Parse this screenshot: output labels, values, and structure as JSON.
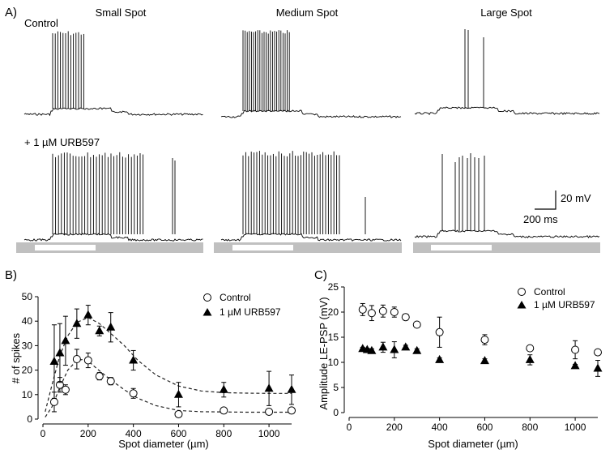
{
  "panel_a": {
    "label": "A)",
    "columns": [
      "Small Spot",
      "Medium Spot",
      "Large Spot"
    ],
    "row_labels": [
      "Control",
      "+ 1 µM URB597"
    ],
    "scalebar": {
      "voltage": "20 mV",
      "time": "200 ms"
    }
  },
  "colors": {
    "control": "#ffffff",
    "urb": "#000000",
    "stimulus_bar": "#c0c0c0",
    "fit": "#222222"
  },
  "chart_data": [
    {
      "panel": "B)",
      "type": "scatter",
      "xlabel": "Spot diameter (µm)",
      "ylabel": "# of spikes",
      "xlim": [
        0,
        1100
      ],
      "ylim": [
        0,
        50
      ],
      "xticks": [
        0,
        200,
        400,
        600,
        800,
        1000
      ],
      "yticks": [
        0,
        10,
        20,
        30,
        40,
        50
      ],
      "legend": "top-right",
      "fit_lines": "dashed",
      "series": [
        {
          "name": "Control",
          "marker": "open-circle",
          "x": [
            50,
            75,
            100,
            150,
            200,
            250,
            300,
            400,
            600,
            800,
            1000,
            1100
          ],
          "y": [
            7,
            14,
            12,
            24.5,
            24,
            17.5,
            15.5,
            10.5,
            2,
            3.5,
            3,
            3.5
          ],
          "err": [
            4,
            3,
            2,
            4,
            3,
            1.5,
            1.5,
            2,
            1,
            1,
            1,
            1
          ],
          "fit": [
            [
              10,
              0.8
            ],
            [
              40,
              5
            ],
            [
              75,
              13
            ],
            [
              110,
              20
            ],
            [
              150,
              24
            ],
            [
              190,
              24.5
            ],
            [
              240,
              20.5
            ],
            [
              300,
              16
            ],
            [
              360,
              12
            ],
            [
              420,
              8.5
            ],
            [
              500,
              5.5
            ],
            [
              600,
              3.5
            ],
            [
              700,
              3
            ],
            [
              800,
              2.9
            ],
            [
              900,
              2.8
            ],
            [
              1000,
              2.8
            ],
            [
              1100,
              2.8
            ]
          ]
        },
        {
          "name": "1 µM URB597",
          "marker": "filled-triangle",
          "x": [
            50,
            75,
            100,
            150,
            200,
            250,
            300,
            400,
            600,
            800,
            1000,
            1100
          ],
          "y": [
            23.5,
            27,
            32,
            39,
            42.5,
            36,
            37.5,
            24,
            10,
            12,
            12.5,
            12
          ],
          "err": [
            15,
            12,
            10,
            6,
            4,
            2,
            6,
            4,
            5,
            3,
            7,
            6
          ],
          "fit": [
            [
              10,
              3
            ],
            [
              40,
              14
            ],
            [
              75,
              26
            ],
            [
              110,
              34
            ],
            [
              150,
              39.5
            ],
            [
              200,
              41.5
            ],
            [
              250,
              39
            ],
            [
              300,
              35
            ],
            [
              360,
              30
            ],
            [
              420,
              24
            ],
            [
              500,
              18
            ],
            [
              600,
              13.5
            ],
            [
              700,
              11.5
            ],
            [
              800,
              10.8
            ],
            [
              900,
              10.6
            ],
            [
              1000,
              10.5
            ],
            [
              1100,
              10.5
            ]
          ]
        }
      ]
    },
    {
      "panel": "C)",
      "type": "scatter",
      "xlabel": "Spot diameter (µm)",
      "ylabel": "Amplitude LE-PSP (mV)",
      "xlim": [
        0,
        1100
      ],
      "ylim": [
        0,
        25
      ],
      "xticks": [
        0,
        200,
        400,
        600,
        800,
        1000
      ],
      "yticks": [
        0,
        5,
        10,
        15,
        20,
        25
      ],
      "legend": "top-right",
      "series": [
        {
          "name": "Control",
          "marker": "open-circle",
          "x": [
            60,
            100,
            150,
            200,
            250,
            300,
            400,
            600,
            800,
            1000,
            1100
          ],
          "y": [
            20.5,
            19.8,
            20.2,
            20,
            19,
            17.5,
            16,
            14.5,
            12.8,
            12.5,
            12
          ],
          "err": [
            1.2,
            1.5,
            1.2,
            1,
            0.6,
            0.4,
            3,
            1,
            0.5,
            1.8,
            0.4
          ]
        },
        {
          "name": "1 µM URB597",
          "marker": "filled-triangle",
          "x": [
            60,
            80,
            100,
            150,
            200,
            250,
            300,
            400,
            600,
            800,
            1000,
            1100
          ],
          "y": [
            12.7,
            12.5,
            12.3,
            13,
            12.5,
            13,
            12.3,
            10.5,
            10.3,
            10.5,
            9.3,
            8.8
          ],
          "err": [
            0.3,
            0.3,
            0.4,
            1,
            1.6,
            0.4,
            0.4,
            0.4,
            0.4,
            1,
            0.3,
            1.6
          ]
        }
      ]
    }
  ]
}
